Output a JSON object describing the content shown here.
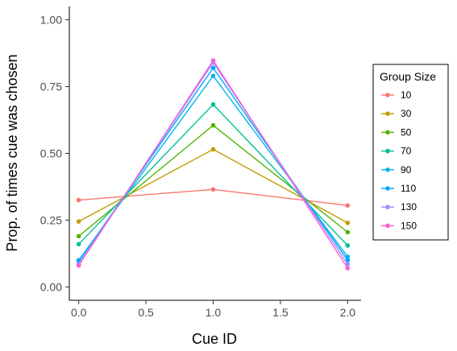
{
  "chart_data": {
    "type": "line",
    "xlabel": "Cue ID",
    "ylabel": "Prop. of times cue was chosen",
    "xlim": [
      -0.07,
      2.1
    ],
    "ylim": [
      -0.05,
      1.05
    ],
    "x_ticks": [
      0.0,
      0.5,
      1.0,
      1.5,
      2.0
    ],
    "x_tick_labels": [
      "0.0",
      "0.5",
      "1.0",
      "1.5",
      "2.0"
    ],
    "y_ticks": [
      0.0,
      0.25,
      0.5,
      0.75,
      1.0
    ],
    "y_tick_labels": [
      "0.00",
      "0.25",
      "0.50",
      "0.75",
      "1.00"
    ],
    "grid": false,
    "legend": {
      "title": "Group Size",
      "position": "right"
    },
    "x": [
      0,
      1,
      2
    ],
    "series": [
      {
        "name": "10",
        "color": "#F8766D",
        "values": [
          0.325,
          0.365,
          0.305
        ]
      },
      {
        "name": "30",
        "color": "#C49A00",
        "values": [
          0.245,
          0.515,
          0.24
        ]
      },
      {
        "name": "50",
        "color": "#53B400",
        "values": [
          0.19,
          0.605,
          0.205
        ]
      },
      {
        "name": "70",
        "color": "#00C094",
        "values": [
          0.16,
          0.683,
          0.155
        ]
      },
      {
        "name": "90",
        "color": "#00B6EB",
        "values": [
          0.1,
          0.79,
          0.113
        ]
      },
      {
        "name": "110",
        "color": "#06A4FF",
        "values": [
          0.095,
          0.82,
          0.1
        ]
      },
      {
        "name": "130",
        "color": "#A58AFF",
        "values": [
          0.085,
          0.84,
          0.085
        ]
      },
      {
        "name": "150",
        "color": "#FB61D7",
        "values": [
          0.08,
          0.848,
          0.07
        ]
      }
    ]
  }
}
